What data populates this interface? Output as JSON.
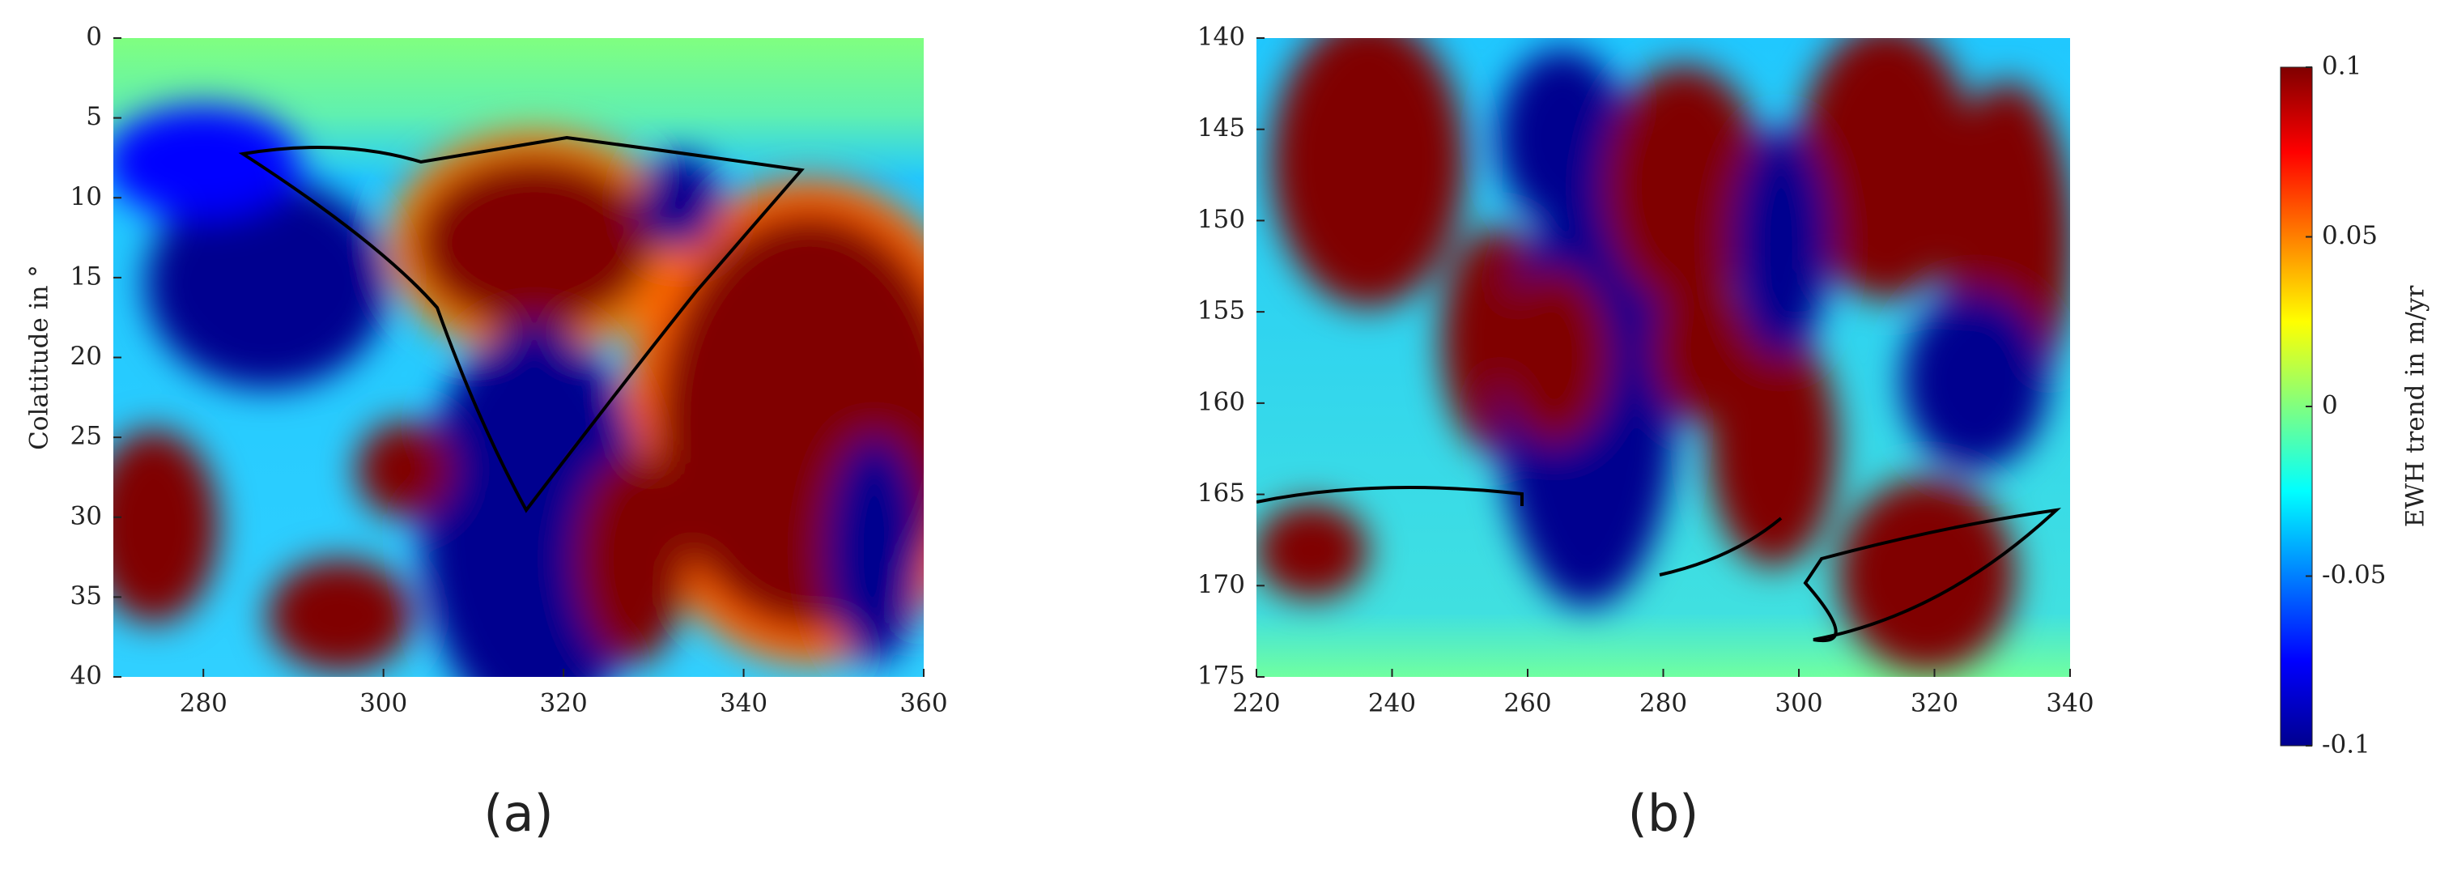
{
  "chart_data": [
    {
      "type": "heatmap",
      "label": "(a)",
      "ylabel": "Colatitude in °",
      "xlim": [
        270,
        360
      ],
      "xticks": [
        280,
        300,
        320,
        340,
        360
      ],
      "ylim": [
        0,
        40
      ],
      "yticks": [
        0,
        5,
        10,
        15,
        20,
        25,
        30,
        35,
        40
      ],
      "y_reversed": true
    },
    {
      "type": "heatmap",
      "label": "(b)",
      "xlim": [
        220,
        340
      ],
      "xticks": [
        220,
        240,
        260,
        280,
        300,
        320,
        340
      ],
      "ylim": [
        140,
        175
      ],
      "yticks": [
        140,
        145,
        150,
        155,
        160,
        165,
        170,
        175
      ],
      "y_reversed": true,
      "colorbar": {
        "label": "EWH trend in m/yr",
        "lim": [
          -0.1,
          0.1
        ],
        "ticks": [
          0.1,
          0.05,
          0,
          -0.05,
          -0.1
        ]
      }
    }
  ]
}
